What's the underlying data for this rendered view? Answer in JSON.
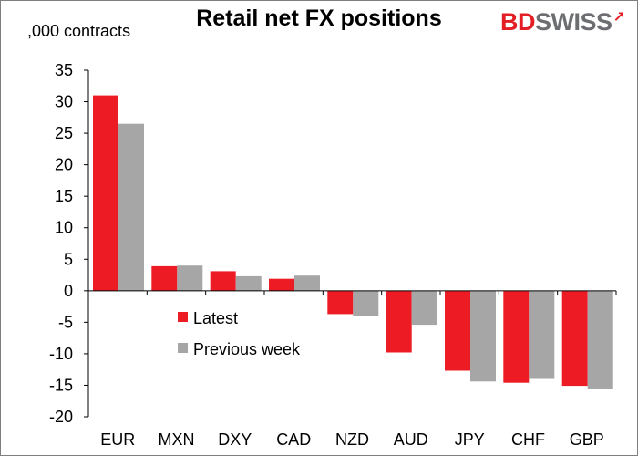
{
  "brand": {
    "logo_bd": "BD",
    "logo_swiss": "SWISS",
    "red": "#e31e24",
    "grey": "#6d6e71"
  },
  "chart_data": {
    "type": "bar",
    "title": "Retail net FX positions",
    "ylabel": ",000 contracts",
    "xlabel": "",
    "ylim": [
      -20,
      35
    ],
    "yticks": [
      35,
      30,
      25,
      20,
      15,
      10,
      5,
      0,
      -5,
      -10,
      -15,
      -20
    ],
    "grid": false,
    "legend_position": "center-left",
    "categories": [
      "EUR",
      "MXN",
      "DXY",
      "CAD",
      "NZD",
      "AUD",
      "JPY",
      "CHF",
      "GBP"
    ],
    "series": [
      {
        "name": "Latest",
        "color": "#ed1c24",
        "values": [
          31.0,
          3.9,
          3.1,
          1.9,
          -3.7,
          -9.8,
          -12.7,
          -14.6,
          -15.1
        ]
      },
      {
        "name": "Previous week",
        "color": "#a6a6a6",
        "values": [
          26.5,
          4.0,
          2.3,
          2.4,
          -4.0,
          -5.4,
          -14.4,
          -14.0,
          -15.6
        ]
      }
    ]
  }
}
